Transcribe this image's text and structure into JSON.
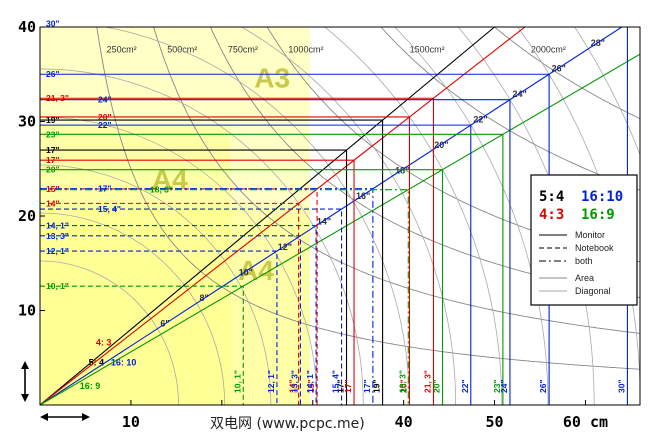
{
  "chart_data": {
    "type": "line",
    "xlim": [
      0,
      66
    ],
    "ylim": [
      0,
      40
    ],
    "x_ticks": [
      10,
      20,
      30,
      40,
      50,
      60
    ],
    "x_tick_labels": [
      "10",
      "",
      "",
      "40",
      "50",
      "60 cm"
    ],
    "y_ticks": [
      10,
      20,
      30,
      40
    ],
    "y_tick_labels": [
      "10",
      "20",
      "30",
      "40"
    ],
    "grid": false,
    "colors": {
      "r54": "#000000",
      "r43": "#e00000",
      "r1610": "#0022dd",
      "r169": "#009900",
      "area": "#888888",
      "diag": "#aaaaaa",
      "paper": "#ffff80"
    },
    "area_curves": [
      {
        "label": "250cm²",
        "area": 250
      },
      {
        "label": "500cm²",
        "area": 500
      },
      {
        "label": "750cm²",
        "area": 750
      },
      {
        "label": "1000cm²",
        "area": 1000
      },
      {
        "label": "1500cm²",
        "area": 1500
      },
      {
        "label": "2000cm²",
        "area": 2000
      }
    ],
    "diagonal_arcs": [
      {
        "label": "6\"",
        "d": 6
      },
      {
        "label": "8\"",
        "d": 8
      },
      {
        "label": "10\"",
        "d": 10
      },
      {
        "label": "12\"",
        "d": 12
      },
      {
        "label": "14\"",
        "d": 14
      },
      {
        "label": "16\"",
        "d": 16
      },
      {
        "label": "18\"",
        "d": 18
      },
      {
        "label": "20\"",
        "d": 20
      },
      {
        "label": "22\"",
        "d": 22
      },
      {
        "label": "24\"",
        "d": 24
      },
      {
        "label": "26\"",
        "d": 26
      },
      {
        "label": "28\"",
        "d": 28
      }
    ],
    "ratio_lines": [
      {
        "label": "5: 4",
        "ratio": "5:4",
        "w": 5,
        "h": 4,
        "color": "#000000"
      },
      {
        "label": "4: 3",
        "ratio": "4:3",
        "w": 4,
        "h": 3,
        "color": "#e00000"
      },
      {
        "label": "16: 10",
        "ratio": "16:10",
        "w": 16,
        "h": 10,
        "color": "#0022dd"
      },
      {
        "label": "16: 9",
        "ratio": "16:9",
        "w": 16,
        "h": 9,
        "color": "#009900"
      }
    ],
    "screens": [
      {
        "label": "17\"",
        "d": 17,
        "ratio": "5:4",
        "type": "monitor",
        "color": "#000000",
        "ylabel": "17\"",
        "xlabel": "17\""
      },
      {
        "label": "19\"",
        "d": 19,
        "ratio": "5:4",
        "type": "monitor",
        "color": "#000000",
        "ylabel": "19\"",
        "xlabel": "19\""
      },
      {
        "label": "15\"",
        "d": 15,
        "ratio": "4:3",
        "type": "notebook",
        "color": "#e00000",
        "ylabel": "15\"",
        "xlabel": "15\""
      },
      {
        "label": "14\"",
        "d": 14,
        "ratio": "4:3",
        "type": "notebook",
        "color": "#e00000",
        "ylabel": "14\"",
        "xlabel": "14\""
      },
      {
        "label": "17\"",
        "d": 17,
        "ratio": "4:3",
        "type": "monitor",
        "color": "#e00000",
        "ylabel": "17\"",
        "xlabel": "17\""
      },
      {
        "label": "20\"",
        "d": 20,
        "ratio": "4:3",
        "type": "monitor",
        "color": "#e00000",
        "ylabel": "20\"",
        "xlabel": "20\""
      },
      {
        "label": "21, 3\"",
        "d": 21.3,
        "ratio": "4:3",
        "type": "monitor",
        "color": "#e00000",
        "ylabel": "21, 3\"",
        "xlabel": "21, 3\""
      },
      {
        "label": "12, 1\"",
        "d": 12.1,
        "ratio": "16:10",
        "type": "notebook",
        "color": "#0022dd",
        "ylabel": "12, 1\"",
        "xlabel": "12, 1\""
      },
      {
        "label": "13, 3\"",
        "d": 13.3,
        "ratio": "16:10",
        "type": "notebook",
        "color": "#0022dd",
        "ylabel": "13, 3\"",
        "xlabel": "13, 3\""
      },
      {
        "label": "14, 1\"",
        "d": 14.1,
        "ratio": "16:10",
        "type": "notebook",
        "color": "#0022dd",
        "ylabel": "14, 1\"",
        "xlabel": "14, 1\""
      },
      {
        "label": "15, 4\"",
        "d": 15.4,
        "ratio": "16:10",
        "type": "notebook",
        "color": "#0022dd",
        "ylabel": "15, 4\"",
        "xlabel": "15, 4\""
      },
      {
        "label": "17\"",
        "d": 17,
        "ratio": "16:10",
        "type": "both",
        "color": "#0022dd",
        "ylabel": "17\"",
        "xlabel": "17\""
      },
      {
        "label": "22\"",
        "d": 22,
        "ratio": "16:10",
        "type": "monitor",
        "color": "#0022dd",
        "ylabel": "22\"",
        "xlabel": "22\""
      },
      {
        "label": "24\"",
        "d": 24,
        "ratio": "16:10",
        "type": "monitor",
        "color": "#0022dd",
        "ylabel": "24\"",
        "xlabel": "24\""
      },
      {
        "label": "26\"",
        "d": 26,
        "ratio": "16:10",
        "type": "monitor",
        "color": "#0022dd",
        "ylabel": "26\"",
        "xlabel": "26\""
      },
      {
        "label": "30\"",
        "d": 30,
        "ratio": "16:10",
        "type": "monitor",
        "color": "#0022dd",
        "ylabel": "30\"",
        "xlabel": "30\""
      },
      {
        "label": "10, 1\"",
        "d": 10.1,
        "ratio": "16:9",
        "type": "notebook",
        "color": "#009900",
        "ylabel": "10, 1\"",
        "xlabel": "10, 1\""
      },
      {
        "label": "18, 3\"",
        "d": 18.3,
        "ratio": "16:9",
        "type": "both",
        "color": "#009900",
        "ylabel": "18, 3\"",
        "xlabel": "18, 3\""
      },
      {
        "label": "20\"",
        "d": 20,
        "ratio": "16:9",
        "type": "monitor",
        "color": "#009900",
        "ylabel": "20\"",
        "xlabel": "20\""
      },
      {
        "label": "23\"",
        "d": 23,
        "ratio": "16:9",
        "type": "monitor",
        "color": "#009900",
        "ylabel": "23\"",
        "xlabel": "23\""
      }
    ],
    "papers": [
      {
        "label": "A4",
        "w": 21.0,
        "h": 29.7
      },
      {
        "label": "A3",
        "w": 29.7,
        "h": 42.0
      },
      {
        "label": "A4",
        "w": 29.7,
        "h": 21.0
      }
    ],
    "legend": {
      "ratios": [
        {
          "text": "5:4",
          "color": "#000000"
        },
        {
          "text": "16:10",
          "color": "#0022dd"
        },
        {
          "text": "4:3",
          "color": "#e00000"
        },
        {
          "text": "16:9",
          "color": "#009900"
        }
      ],
      "types": [
        "Monitor",
        "Notebook",
        "both"
      ],
      "curves": [
        "Area",
        "Diagonal"
      ]
    }
  },
  "watermark": "双电网 (www.pcpc.me)"
}
